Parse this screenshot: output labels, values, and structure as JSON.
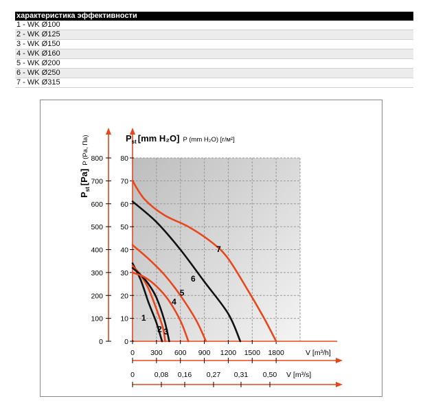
{
  "table": {
    "header": "характеристика эффективности",
    "rows": [
      "1 - WK Ø100",
      "2 - WK Ø125",
      "3 - WK Ø150",
      "4 - WK Ø160",
      "5 - WK Ø200",
      "6 - WK Ø250",
      "7 - WK Ø315"
    ]
  },
  "chart_data": {
    "type": "line",
    "top_title_main": "P",
    "top_title_sub": "st",
    "top_title_unit": "[mm H₂O]",
    "top_title_rest": "P (mm H₂O) [г/м²]",
    "ylabel_main": "P",
    "ylabel_sub": "st",
    "ylabel_unit": "[Pa]",
    "ylabel_rest": "P (Pa, Па)",
    "xlabel": "V [m³/h]",
    "x2label": "V [m³/s]",
    "xlim": [
      0,
      2100
    ],
    "ylim": [
      0,
      800
    ],
    "x_ticks": [
      "0",
      "300",
      "600",
      "900",
      "1200",
      "1500",
      "1800"
    ],
    "x_tick_values": [
      0,
      300,
      600,
      900,
      1200,
      1500,
      1800
    ],
    "x2_ticks": [
      "0",
      "0,08",
      "0,16",
      "0,27",
      "0,31",
      "0,50"
    ],
    "y_ticks_pa": [
      "0",
      "100",
      "200",
      "300",
      "400",
      "500",
      "600",
      "700",
      "800"
    ],
    "y_ticks_mm": [
      "0",
      "10",
      "20",
      "30",
      "40",
      "50",
      "60",
      "70",
      "80"
    ],
    "y_tick_values": [
      0,
      100,
      200,
      300,
      400,
      500,
      600,
      700,
      800
    ],
    "grid": true,
    "colors": {
      "odd": "#e8471c",
      "even": "#111111",
      "axis": "#e8471c",
      "grid": "#9a9a9a",
      "bg": "#d6d6d6"
    },
    "series": [
      {
        "name": "1",
        "color": "#111111",
        "label_at": [
          140,
          90
        ],
        "points": [
          [
            0,
            340
          ],
          [
            100,
            270
          ],
          [
            200,
            170
          ],
          [
            300,
            80
          ],
          [
            370,
            0
          ]
        ]
      },
      {
        "name": "2",
        "color": "#e8471c",
        "label_at": [
          340,
          40
        ],
        "points": [
          [
            0,
            330
          ],
          [
            100,
            290
          ],
          [
            200,
            230
          ],
          [
            300,
            140
          ],
          [
            380,
            60
          ],
          [
            410,
            0
          ]
        ]
      },
      {
        "name": "3",
        "color": "#111111",
        "label_at": [
          420,
          30
        ],
        "points": [
          [
            0,
            320
          ],
          [
            100,
            290
          ],
          [
            200,
            250
          ],
          [
            300,
            190
          ],
          [
            400,
            90
          ],
          [
            460,
            0
          ]
        ]
      },
      {
        "name": "4",
        "color": "#e8471c",
        "label_at": [
          520,
          160
        ],
        "points": [
          [
            0,
            300
          ],
          [
            150,
            280
          ],
          [
            300,
            240
          ],
          [
            450,
            180
          ],
          [
            600,
            90
          ],
          [
            700,
            0
          ]
        ]
      },
      {
        "name": "5",
        "color": "#e8471c",
        "label_at": [
          620,
          200
        ],
        "points": [
          [
            0,
            420
          ],
          [
            200,
            360
          ],
          [
            400,
            290
          ],
          [
            600,
            200
          ],
          [
            800,
            90
          ],
          [
            920,
            0
          ]
        ]
      },
      {
        "name": "6",
        "color": "#111111",
        "label_at": [
          760,
          260
        ],
        "points": [
          [
            0,
            610
          ],
          [
            300,
            520
          ],
          [
            600,
            400
          ],
          [
            900,
            260
          ],
          [
            1200,
            120
          ],
          [
            1350,
            0
          ]
        ]
      },
      {
        "name": "7",
        "color": "#e8471c",
        "label_at": [
          1080,
          390
        ],
        "points": [
          [
            0,
            700
          ],
          [
            150,
            620
          ],
          [
            400,
            550
          ],
          [
            700,
            500
          ],
          [
            1000,
            430
          ],
          [
            1200,
            360
          ],
          [
            1450,
            220
          ],
          [
            1650,
            100
          ],
          [
            1800,
            0
          ]
        ]
      }
    ]
  }
}
